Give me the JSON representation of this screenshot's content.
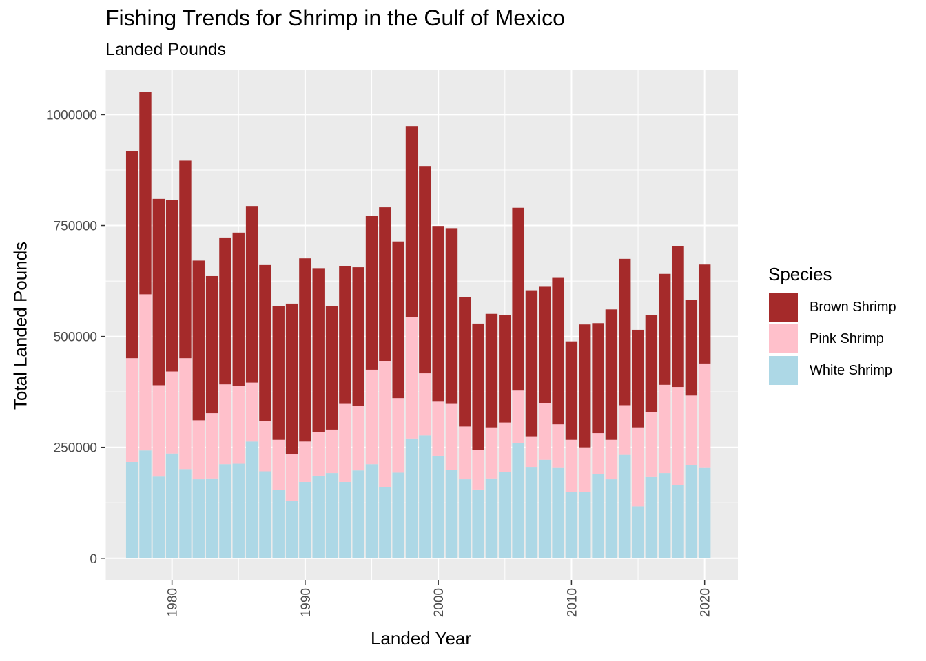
{
  "chart_data": {
    "type": "bar",
    "stacked": true,
    "title": "Fishing Trends for Shrimp in the Gulf of Mexico",
    "subtitle": "Landed Pounds",
    "xlabel": "Landed Year",
    "ylabel": "Total Landed Pounds",
    "xlim": [
      1975.0,
      2022.5
    ],
    "ylim": [
      -50000,
      1100000
    ],
    "x_ticks": [
      1980,
      1990,
      2000,
      2010,
      2020
    ],
    "x_tick_labels": [
      "1980",
      "1990",
      "2000",
      "2010",
      "2020"
    ],
    "y_ticks": [
      0,
      250000,
      500000,
      750000,
      1000000
    ],
    "y_tick_labels": [
      "0",
      "250000",
      "500000",
      "750000",
      "1000000"
    ],
    "grid": true,
    "legend_position": "right",
    "legend_title": "Species",
    "categories": [
      1977,
      1978,
      1979,
      1980,
      1981,
      1982,
      1983,
      1984,
      1985,
      1986,
      1987,
      1988,
      1989,
      1990,
      1991,
      1992,
      1993,
      1994,
      1995,
      1996,
      1997,
      1998,
      1999,
      2000,
      2001,
      2002,
      2003,
      2004,
      2005,
      2006,
      2007,
      2008,
      2009,
      2010,
      2011,
      2012,
      2013,
      2014,
      2015,
      2016,
      2017,
      2018,
      2019,
      2020
    ],
    "series": [
      {
        "name": "White Shrimp",
        "color": "#add8e6",
        "values": [
          217000,
          243000,
          184000,
          236000,
          201000,
          178000,
          180000,
          212000,
          213000,
          263000,
          196000,
          154000,
          129000,
          172000,
          186000,
          192000,
          172000,
          198000,
          212000,
          160000,
          193000,
          270000,
          277000,
          231000,
          199000,
          178000,
          155000,
          180000,
          195000,
          260000,
          206000,
          222000,
          205000,
          150000,
          150000,
          190000,
          178000,
          233000,
          117000,
          183000,
          192000,
          165000,
          210000,
          205000
        ]
      },
      {
        "name": "Pink Shrimp",
        "color": "#ffc0cb",
        "values": [
          234000,
          352000,
          206000,
          185000,
          250000,
          133000,
          147000,
          180000,
          175000,
          133000,
          114000,
          113000,
          105000,
          91000,
          98000,
          98000,
          176000,
          146000,
          213000,
          284000,
          168000,
          273000,
          140000,
          122000,
          149000,
          119000,
          89000,
          115000,
          111000,
          118000,
          69000,
          128000,
          97000,
          117000,
          100000,
          92000,
          89000,
          112000,
          178000,
          146000,
          199000,
          221000,
          157000,
          234000
        ]
      },
      {
        "name": "Brown Shrimp",
        "color": "#a52a2a",
        "values": [
          466000,
          456000,
          420000,
          386000,
          445000,
          360000,
          309000,
          331000,
          346000,
          398000,
          351000,
          302000,
          340000,
          413000,
          370000,
          279000,
          311000,
          312000,
          346000,
          347000,
          353000,
          431000,
          467000,
          396000,
          396000,
          291000,
          285000,
          256000,
          243000,
          412000,
          329000,
          262000,
          330000,
          222000,
          277000,
          248000,
          294000,
          330000,
          220000,
          219000,
          250000,
          318000,
          215000,
          223000
        ]
      }
    ]
  }
}
